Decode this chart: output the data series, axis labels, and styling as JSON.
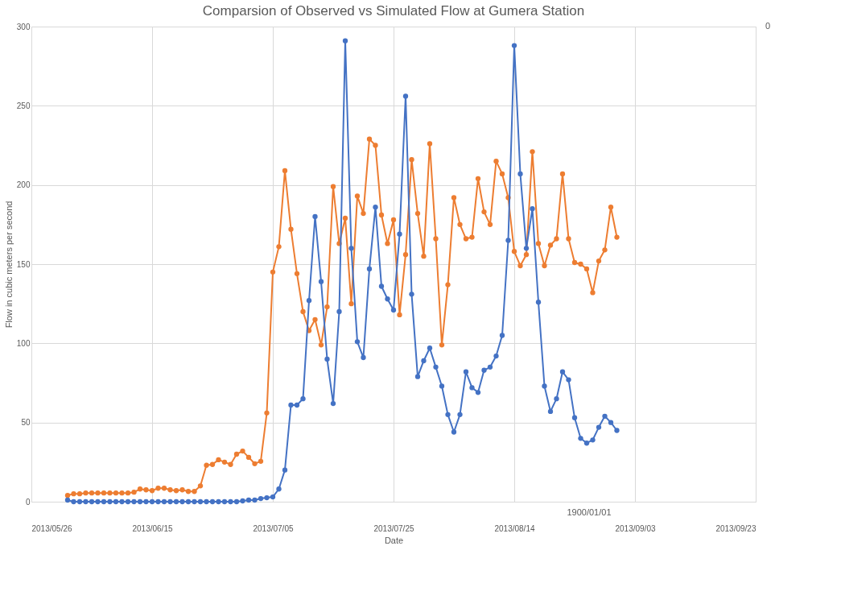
{
  "chart_data": {
    "type": "line",
    "title": "Comparsion of Observed vs Simulated Flow at Gumera Station",
    "xlabel": "Date",
    "ylabel": "Flow in cubic meters per second",
    "x": [
      "2013-06-01",
      "2013-06-02",
      "2013-06-03",
      "2013-06-04",
      "2013-06-05",
      "2013-06-06",
      "2013-06-07",
      "2013-06-08",
      "2013-06-09",
      "2013-06-10",
      "2013-06-11",
      "2013-06-12",
      "2013-06-13",
      "2013-06-14",
      "2013-06-15",
      "2013-06-16",
      "2013-06-17",
      "2013-06-18",
      "2013-06-19",
      "2013-06-20",
      "2013-06-21",
      "2013-06-22",
      "2013-06-23",
      "2013-06-24",
      "2013-06-25",
      "2013-06-26",
      "2013-06-27",
      "2013-06-28",
      "2013-06-29",
      "2013-06-30",
      "2013-07-01",
      "2013-07-02",
      "2013-07-03",
      "2013-07-04",
      "2013-07-05",
      "2013-07-06",
      "2013-07-07",
      "2013-07-08",
      "2013-07-09",
      "2013-07-10",
      "2013-07-11",
      "2013-07-12",
      "2013-07-13",
      "2013-07-14",
      "2013-07-15",
      "2013-07-16",
      "2013-07-17",
      "2013-07-18",
      "2013-07-19",
      "2013-07-20",
      "2013-07-21",
      "2013-07-22",
      "2013-07-23",
      "2013-07-24",
      "2013-07-25",
      "2013-07-26",
      "2013-07-27",
      "2013-07-28",
      "2013-07-29",
      "2013-07-30",
      "2013-07-31",
      "2013-08-01",
      "2013-08-02",
      "2013-08-03",
      "2013-08-04",
      "2013-08-05",
      "2013-08-06",
      "2013-08-07",
      "2013-08-08",
      "2013-08-09",
      "2013-08-10",
      "2013-08-11",
      "2013-08-12",
      "2013-08-13",
      "2013-08-14",
      "2013-08-15",
      "2013-08-16",
      "2013-08-17",
      "2013-08-18",
      "2013-08-19",
      "2013-08-20",
      "2013-08-21",
      "2013-08-22",
      "2013-08-23",
      "2013-08-24",
      "2013-08-25",
      "2013-08-26",
      "2013-08-27",
      "2013-08-28",
      "2013-08-29",
      "2013-08-30",
      "2013-08-31"
    ],
    "series": [
      {
        "color": "#ed7d31",
        "values": [
          4,
          5,
          5,
          5.5,
          5.5,
          5.5,
          5.5,
          5.5,
          5.5,
          5.5,
          5.5,
          6,
          8,
          7.5,
          7,
          8.5,
          8.5,
          7.5,
          7,
          7.5,
          6.5,
          6.5,
          10,
          23,
          23.5,
          26.5,
          25,
          23.5,
          30,
          32,
          28,
          24,
          25.5,
          56,
          145,
          161,
          209,
          172,
          144,
          120,
          108,
          115,
          99,
          123,
          199,
          163,
          179,
          125,
          193,
          182,
          229,
          225,
          181,
          163,
          178,
          118,
          156,
          216,
          182,
          155,
          226,
          166,
          99,
          137,
          192,
          175,
          166,
          167,
          204,
          183,
          175,
          215,
          207,
          192,
          158,
          149,
          156,
          221,
          163,
          149,
          162,
          166,
          207,
          166,
          151,
          150,
          147,
          132,
          152,
          159,
          186,
          167
        ]
      },
      {
        "color": "#4472c4",
        "values": [
          1,
          0,
          0,
          0,
          0,
          0,
          0,
          0,
          0,
          0,
          0,
          0,
          0,
          0,
          0,
          0,
          0,
          0,
          0,
          0,
          0,
          0,
          0,
          0,
          0,
          0,
          0,
          0,
          0,
          0.5,
          1,
          1,
          2,
          2.5,
          3,
          8,
          20,
          61,
          61,
          65,
          127,
          180,
          139,
          90,
          62,
          120,
          291,
          160,
          101,
          91,
          147,
          186,
          136,
          128,
          121,
          169,
          256,
          131,
          79,
          89,
          97,
          85,
          73,
          55,
          44,
          55,
          82,
          72,
          69,
          83,
          85,
          92,
          105,
          165,
          288,
          207,
          160,
          185,
          126,
          73,
          57,
          65,
          82,
          77,
          53,
          40,
          37,
          39,
          47,
          54,
          50,
          45
        ]
      }
    ],
    "xlim": [
      "2013-05-26",
      "2013-09-23"
    ],
    "xticks": [
      {
        "value": "2013-05-26",
        "label": "2013/05/26"
      },
      {
        "value": "2013-06-15",
        "label": "2013/06/15"
      },
      {
        "value": "2013-07-05",
        "label": "2013/07/05"
      },
      {
        "value": "2013-07-25",
        "label": "2013/07/25"
      },
      {
        "value": "2013-08-14",
        "label": "2013/08/14"
      },
      {
        "value": "2013-09-03",
        "label": "2013/09/03"
      },
      {
        "value": "2013-09-23",
        "label": "2013/09/23"
      }
    ],
    "ylim": [
      0,
      300
    ],
    "yticks": [
      0,
      50,
      100,
      150,
      200,
      250,
      300
    ],
    "grid": true,
    "marker": "circle",
    "line_style": "solid",
    "annotations": [
      "0",
      "1900/01/01"
    ]
  }
}
